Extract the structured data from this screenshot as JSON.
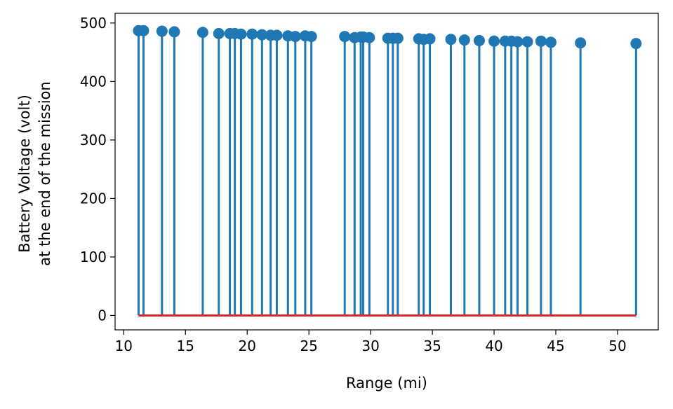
{
  "chart_data": {
    "type": "stem",
    "title": "",
    "xlabel": "Range (mi)",
    "ylabel_lines": [
      "Battery Voltage (volt)",
      "at the end of the mission"
    ],
    "xlim": [
      9.3,
      53.3
    ],
    "ylim": [
      -24.6,
      516.6
    ],
    "xticks": [
      10,
      15,
      20,
      25,
      30,
      35,
      40,
      45,
      50
    ],
    "yticks": [
      0,
      100,
      200,
      300,
      400,
      500
    ],
    "grid": false,
    "legend": "none",
    "colors": {
      "stem": "#1f77b4",
      "baseline": "#d62728",
      "axis": "#000000"
    },
    "points": [
      {
        "x": 11.2,
        "y": 487
      },
      {
        "x": 11.6,
        "y": 487
      },
      {
        "x": 13.1,
        "y": 486
      },
      {
        "x": 14.1,
        "y": 485
      },
      {
        "x": 16.4,
        "y": 484
      },
      {
        "x": 17.7,
        "y": 482
      },
      {
        "x": 18.6,
        "y": 482
      },
      {
        "x": 19.0,
        "y": 482
      },
      {
        "x": 19.5,
        "y": 481
      },
      {
        "x": 20.4,
        "y": 481
      },
      {
        "x": 21.2,
        "y": 480
      },
      {
        "x": 21.9,
        "y": 479
      },
      {
        "x": 22.4,
        "y": 479
      },
      {
        "x": 23.3,
        "y": 478
      },
      {
        "x": 23.9,
        "y": 477
      },
      {
        "x": 24.7,
        "y": 478
      },
      {
        "x": 25.2,
        "y": 477
      },
      {
        "x": 27.9,
        "y": 477
      },
      {
        "x": 28.7,
        "y": 475
      },
      {
        "x": 29.2,
        "y": 476
      },
      {
        "x": 29.4,
        "y": 476
      },
      {
        "x": 29.9,
        "y": 475
      },
      {
        "x": 31.4,
        "y": 474
      },
      {
        "x": 31.8,
        "y": 474
      },
      {
        "x": 32.2,
        "y": 474
      },
      {
        "x": 33.9,
        "y": 473
      },
      {
        "x": 34.3,
        "y": 472
      },
      {
        "x": 34.8,
        "y": 473
      },
      {
        "x": 36.5,
        "y": 472
      },
      {
        "x": 37.6,
        "y": 471
      },
      {
        "x": 38.8,
        "y": 470
      },
      {
        "x": 40.0,
        "y": 469
      },
      {
        "x": 40.9,
        "y": 469
      },
      {
        "x": 41.4,
        "y": 469
      },
      {
        "x": 41.9,
        "y": 468
      },
      {
        "x": 42.7,
        "y": 468
      },
      {
        "x": 43.8,
        "y": 469
      },
      {
        "x": 44.6,
        "y": 467
      },
      {
        "x": 47.0,
        "y": 466
      },
      {
        "x": 51.5,
        "y": 465
      }
    ]
  }
}
